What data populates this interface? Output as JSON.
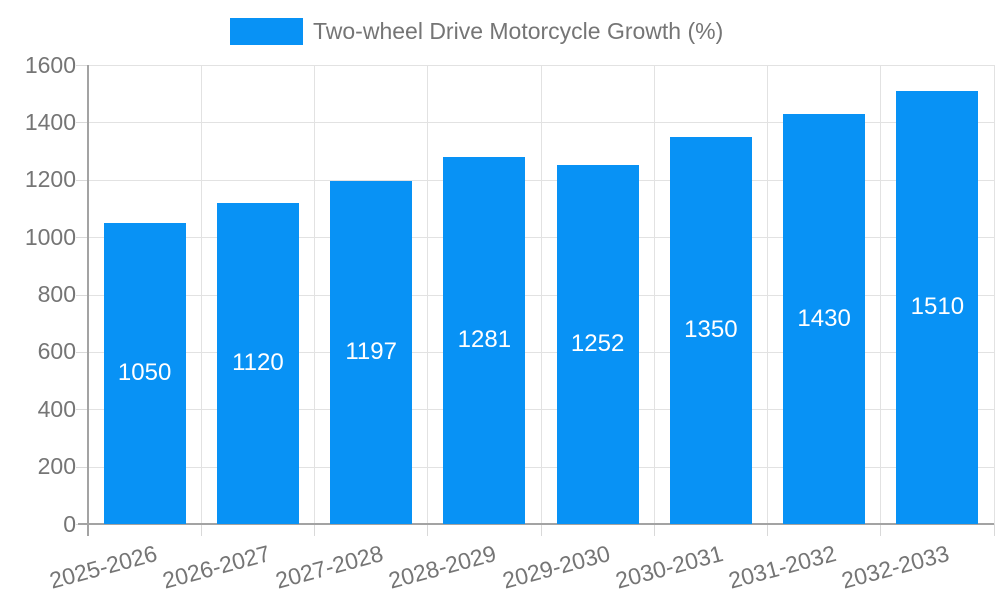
{
  "chart_data": {
    "type": "bar",
    "title": "Two-wheel Drive Motorcycle Growth (%)",
    "legend": {
      "label": "Two-wheel Drive Motorcycle Growth (%)",
      "position": "top-center"
    },
    "categories": [
      "2025-2026",
      "2026-2027",
      "2027-2028",
      "2028-2029",
      "2029-2030",
      "2030-2031",
      "2031-2032",
      "2032-2033"
    ],
    "values": [
      1050,
      1120,
      1197,
      1281,
      1252,
      1350,
      1430,
      1510
    ],
    "value_labels_shown_inside_bars": true,
    "xlabel": "",
    "ylabel": "",
    "ylim": [
      0,
      1600
    ],
    "yticks": [
      0,
      200,
      400,
      600,
      800,
      1000,
      1200,
      1400,
      1600
    ],
    "grid": "on",
    "x_label_rotation_deg": -15,
    "colors": {
      "bar": "#0892F5",
      "grid": "#e2e2e2",
      "axis": "#a3a3a3",
      "tick": "#d9d9d9",
      "axis_text": "#757575",
      "value_label_text": "#ffffff"
    }
  }
}
